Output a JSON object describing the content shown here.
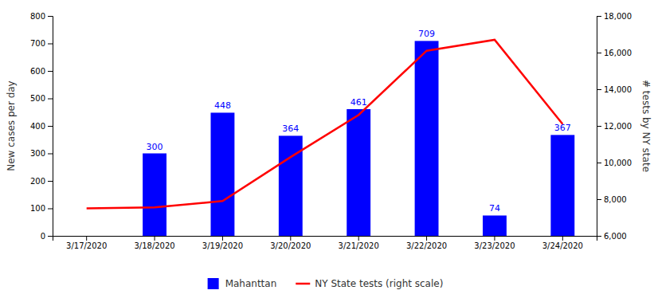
{
  "chart_data": {
    "type": "bar",
    "categories": [
      "3/17/2020",
      "3/18/2020",
      "3/19/2020",
      "3/20/2020",
      "3/21/2020",
      "3/22/2020",
      "3/23/2020",
      "3/24/2020"
    ],
    "series": [
      {
        "name": "Mahanttan",
        "type": "bar",
        "color": "#0000FF",
        "data_labels": true,
        "values": [
          null,
          300,
          448,
          364,
          461,
          709,
          74,
          367
        ]
      },
      {
        "name": "NY State tests (right scale)",
        "type": "line",
        "color": "#FF0000",
        "axis": "y2",
        "values": [
          7500,
          7550,
          7900,
          10300,
          12600,
          16100,
          16700,
          12100
        ]
      }
    ],
    "ylabel": "New cases per day",
    "y2label": "# tests by NY state",
    "ylim": [
      0,
      800
    ],
    "yticks": [
      0,
      100,
      200,
      300,
      400,
      500,
      600,
      700,
      800
    ],
    "y2lim": [
      6000,
      18000
    ],
    "y2ticks": [
      {
        "value": 6000,
        "label": "6,000"
      },
      {
        "value": 8000,
        "label": "8,000"
      },
      {
        "value": 10000,
        "label": "10,000"
      },
      {
        "value": 12000,
        "label": "12,000"
      },
      {
        "value": 14000,
        "label": "14,000"
      },
      {
        "value": 16000,
        "label": "16,000"
      },
      {
        "value": 18000,
        "label": "18,000"
      }
    ],
    "grid": false,
    "legend": "bottom"
  }
}
